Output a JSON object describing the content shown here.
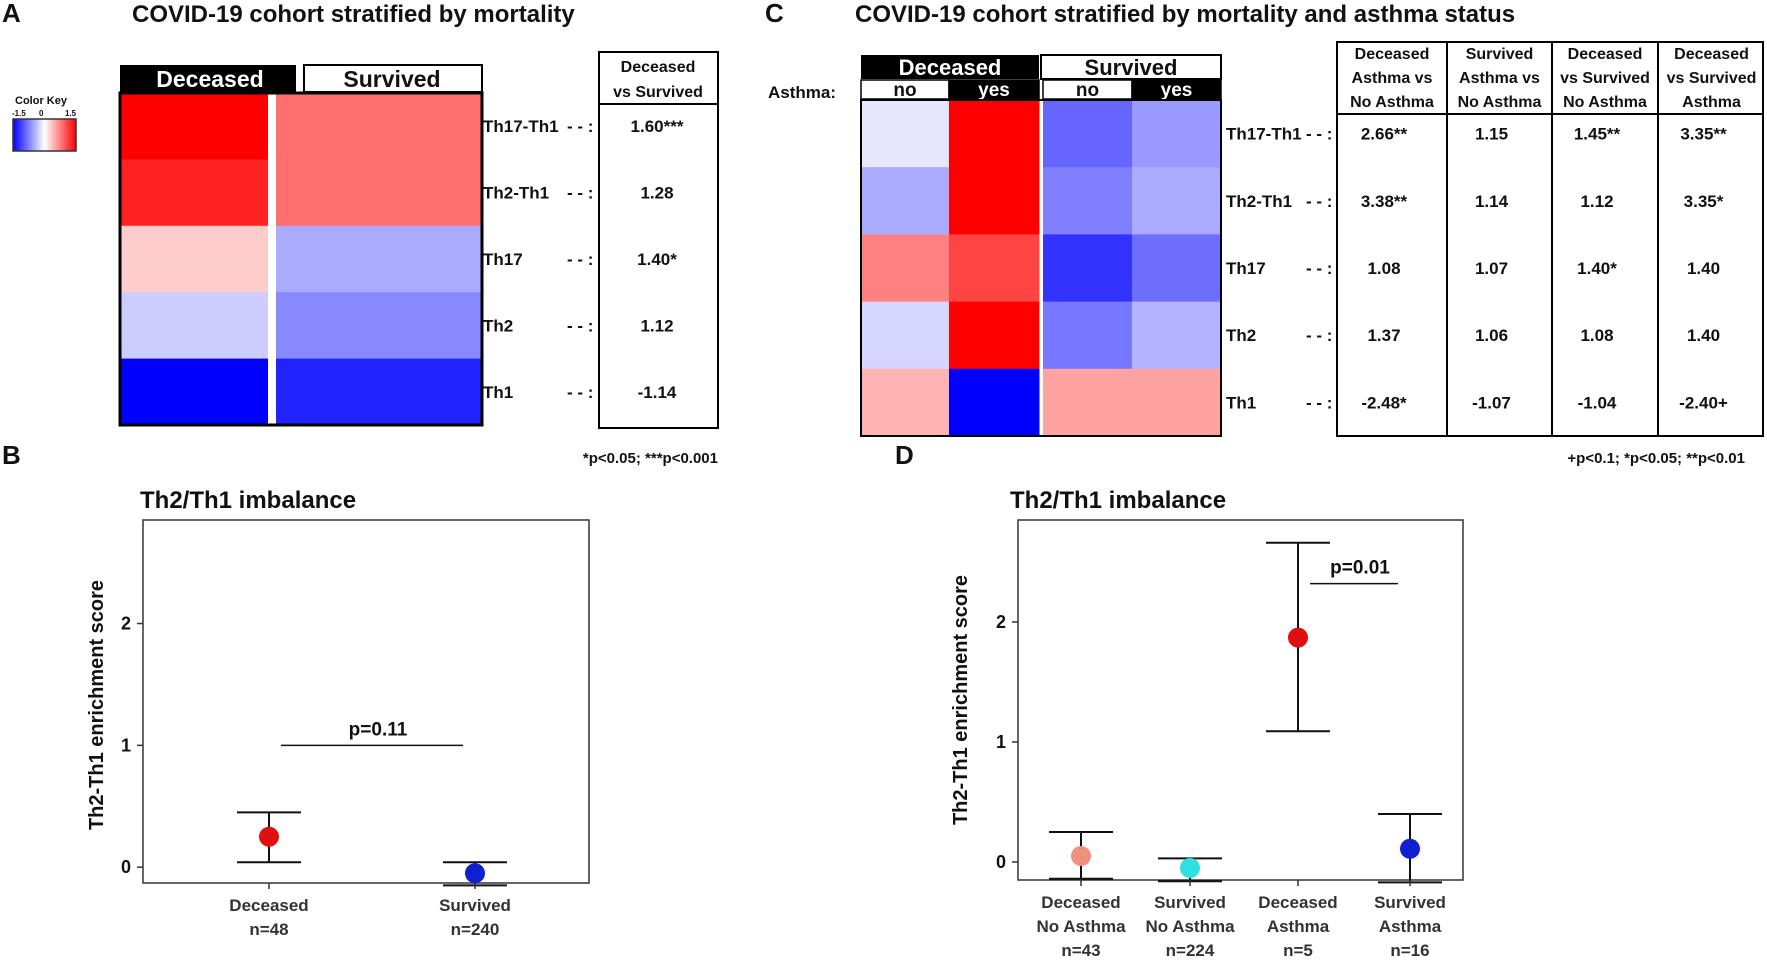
{
  "panel_labels": {
    "a": "A",
    "b": "B",
    "c": "C",
    "d": "D"
  },
  "color_key": {
    "title": "Color Key",
    "ticks": [
      "-1.5",
      "0",
      "1.5"
    ],
    "low_color": "#0000ff",
    "mid_color": "#ffffff",
    "high_color": "#ff0000"
  },
  "chart_data": [
    {
      "id": "A",
      "type": "heatmap",
      "title": "COVID-19 cohort stratified by mortality",
      "columns": [
        "Deceased",
        "Survived"
      ],
      "rows": [
        "Th17-Th1",
        "Th2-Th1",
        "Th17",
        "Th2",
        "Th1"
      ],
      "row_suffix": "- - :",
      "values": [
        [
          1.5,
          0.85
        ],
        [
          1.3,
          0.85
        ],
        [
          0.3,
          -0.5
        ],
        [
          -0.3,
          -0.7
        ],
        [
          -1.5,
          -1.3
        ]
      ],
      "color_range": [
        -1.5,
        1.5
      ],
      "table": {
        "header": [
          "Deceased",
          "vs Survived"
        ],
        "cells": [
          "1.60***",
          "1.28",
          "1.40*",
          "1.12",
          "-1.14"
        ]
      },
      "footnote": "*p<0.05; ***p<0.001"
    },
    {
      "id": "C",
      "type": "heatmap",
      "title": "COVID-19 cohort stratified by mortality and asthma status",
      "groups": [
        "Deceased",
        "Survived"
      ],
      "subgroup_label": "Asthma:",
      "subgroups": [
        "no",
        "yes",
        "no",
        "yes"
      ],
      "rows": [
        "Th17-Th1",
        "Th2-Th1",
        "Th17",
        "Th2",
        "Th1"
      ],
      "row_suffix": "- - :",
      "values": [
        [
          -0.15,
          1.5,
          -0.9,
          -0.6
        ],
        [
          -0.5,
          1.5,
          -0.75,
          -0.5
        ],
        [
          0.75,
          1.1,
          -1.2,
          -0.85
        ],
        [
          -0.25,
          1.5,
          -0.8,
          -0.45
        ],
        [
          0.45,
          -1.5,
          0.55,
          0.55
        ]
      ],
      "color_range": [
        -1.5,
        1.5
      ],
      "table": {
        "headers": [
          [
            "Deceased",
            "Asthma vs",
            "No Asthma"
          ],
          [
            "Survived",
            "Asthma vs",
            "No Asthma"
          ],
          [
            "Deceased",
            "vs Survived",
            "No Asthma"
          ],
          [
            "Deceased",
            "vs Survived",
            "Asthma"
          ]
        ],
        "cells": [
          [
            "2.66**",
            "1.15",
            "1.45**",
            "3.35**"
          ],
          [
            "3.38**",
            "1.14",
            "1.12",
            "3.35*"
          ],
          [
            "1.08",
            "1.07",
            "1.40*",
            "1.40"
          ],
          [
            "1.37",
            "1.06",
            "1.08",
            "1.40"
          ],
          [
            "-2.48*",
            "-1.07",
            "-1.04",
            "-2.40+"
          ]
        ]
      },
      "footnote": "+p<0.1; *p<0.05; **p<0.01"
    },
    {
      "id": "B",
      "type": "scatter",
      "title": "Th2/Th1 imbalance",
      "ylabel": "Th2-Th1 enrichment score",
      "ylim": [
        -0.13,
        2.85
      ],
      "yticks": [
        "0",
        "1",
        "2"
      ],
      "categories": [
        [
          "Deceased",
          "n=48"
        ],
        [
          "Survived",
          "n=240"
        ]
      ],
      "points": [
        {
          "mean": 0.25,
          "lower": 0.04,
          "upper": 0.45,
          "color": "#e01010"
        },
        {
          "mean": -0.05,
          "lower": -0.15,
          "upper": 0.04,
          "color": "#1020d0"
        }
      ],
      "comparison": {
        "label": "p=0.11",
        "y": 1.0,
        "from": 0,
        "to": 1
      }
    },
    {
      "id": "D",
      "type": "scatter",
      "title": "Th2/Th1 imbalance",
      "ylabel": "Th2-Th1 enrichment score",
      "ylim": [
        -0.15,
        2.85
      ],
      "yticks": [
        "0",
        "1",
        "2"
      ],
      "categories": [
        [
          "Deceased",
          "No Asthma",
          "n=43"
        ],
        [
          "Survived",
          "No Asthma",
          "n=224"
        ],
        [
          "Deceased",
          "Asthma",
          "n=5"
        ],
        [
          "Survived",
          "Asthma",
          "n=16"
        ]
      ],
      "points": [
        {
          "mean": 0.05,
          "lower": -0.14,
          "upper": 0.25,
          "color": "#f09080"
        },
        {
          "mean": -0.05,
          "lower": -0.16,
          "upper": 0.03,
          "color": "#30e0e0"
        },
        {
          "mean": 1.87,
          "lower": 1.09,
          "upper": 2.66,
          "color": "#e01010"
        },
        {
          "mean": 0.11,
          "lower": -0.17,
          "upper": 0.4,
          "color": "#1020d0"
        }
      ],
      "comparison": {
        "label": "p=0.01",
        "y": 2.32,
        "from": 2,
        "to": 3
      }
    }
  ]
}
